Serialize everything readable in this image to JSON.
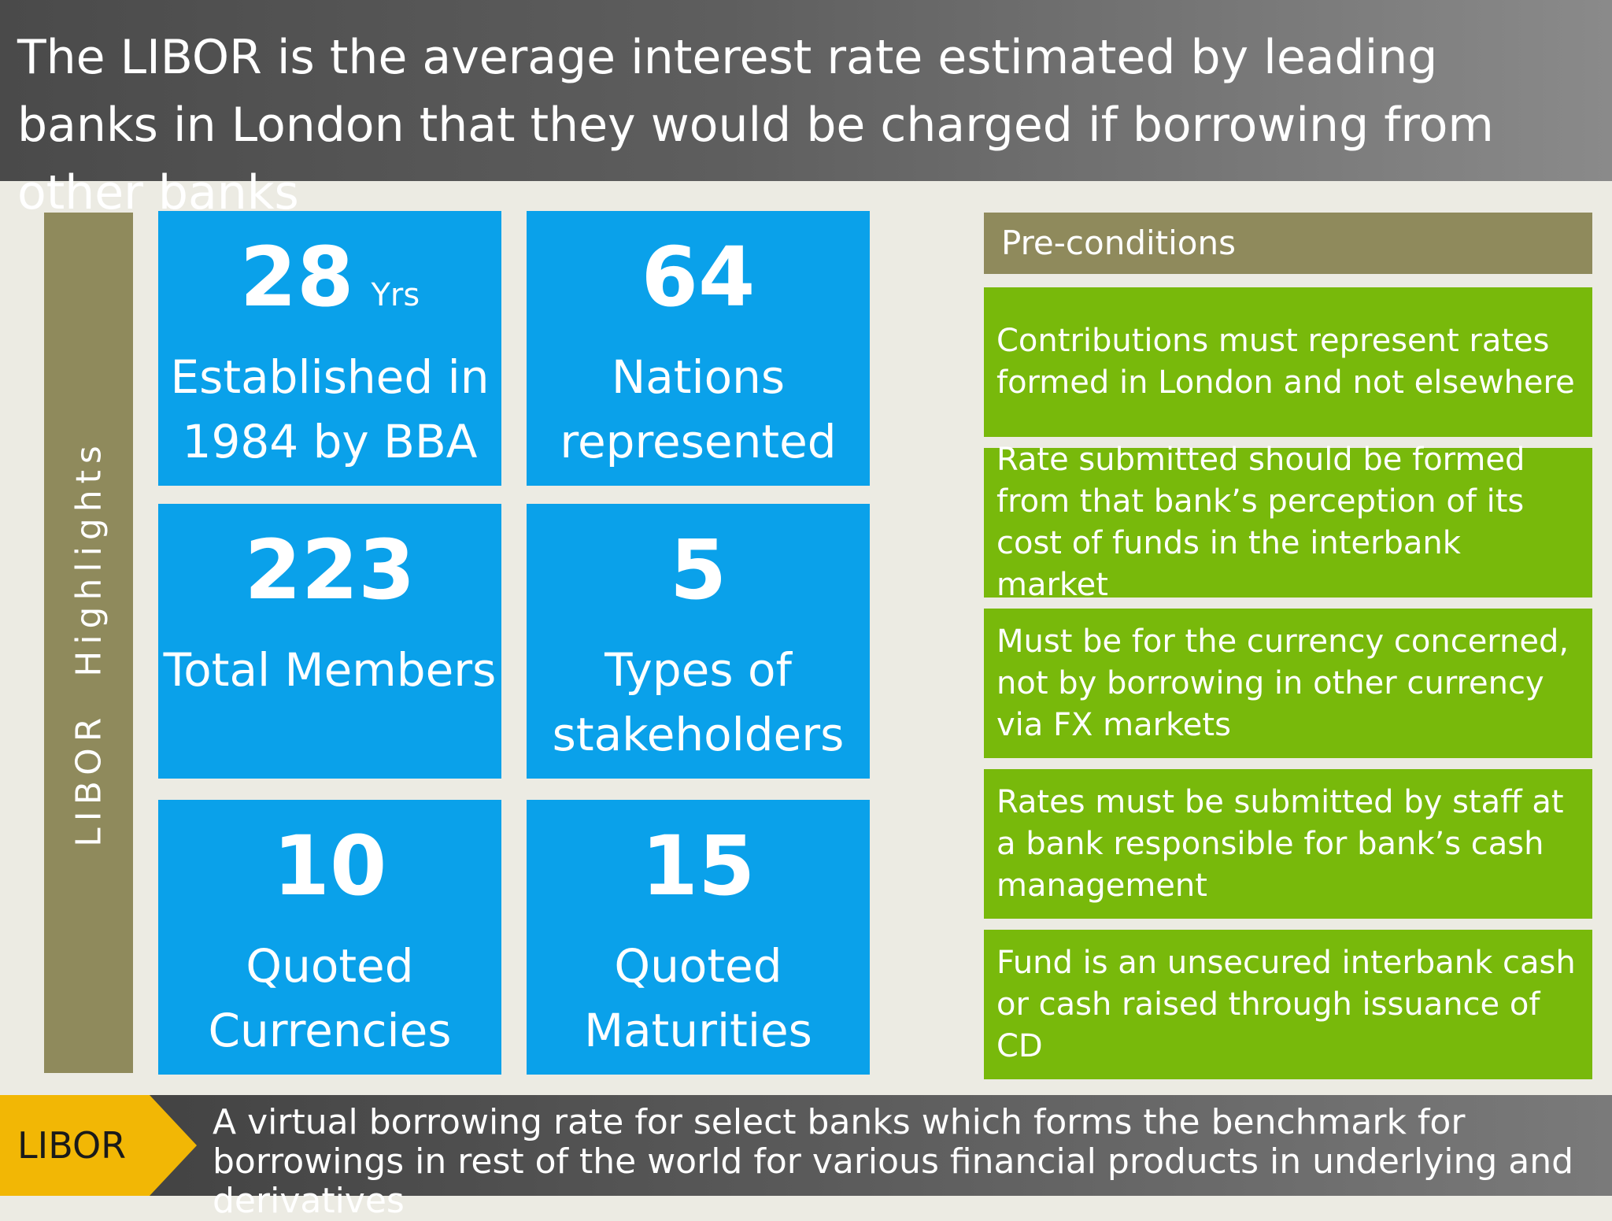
{
  "header": {
    "title": "The LIBOR is the average interest rate estimated by leading banks in London that they would be charged if borrowing from other banks"
  },
  "sidebar": {
    "label": "LIBOR  Highlights"
  },
  "highlights": [
    {
      "value": "28",
      "unit": "Yrs",
      "label": "Established in 1984 by BBA"
    },
    {
      "value": "64",
      "unit": "",
      "label": "Nations represented"
    },
    {
      "value": "223",
      "unit": "",
      "label": "Total Members"
    },
    {
      "value": "5",
      "unit": "",
      "label": "Types of stakeholders"
    },
    {
      "value": "10",
      "unit": "",
      "label": "Quoted Currencies"
    },
    {
      "value": "15",
      "unit": "",
      "label": "Quoted Maturities"
    }
  ],
  "preconditions": {
    "title": "Pre-conditions",
    "items": [
      "Contributions must represent rates formed in London and not elsewhere",
      "Rate submitted should be formed from that bank’s perception of its cost of funds in the interbank market",
      "Must be for the currency concerned, not by borrowing in other currency via FX markets",
      "Rates must be submitted by staff at a bank responsible for bank’s cash management",
      "Fund is an unsecured interbank cash or cash raised through issuance of CD"
    ]
  },
  "footer": {
    "tag": "LIBOR",
    "text": "A virtual borrowing rate for select banks which forms the benchmark for borrowings in rest of the world for various financial products in underlying and derivatives"
  },
  "colors": {
    "tile_blue": "#0aa1ea",
    "olive": "#8f8a5c",
    "green": "#78b90b",
    "tag_yellow": "#f2b705"
  }
}
